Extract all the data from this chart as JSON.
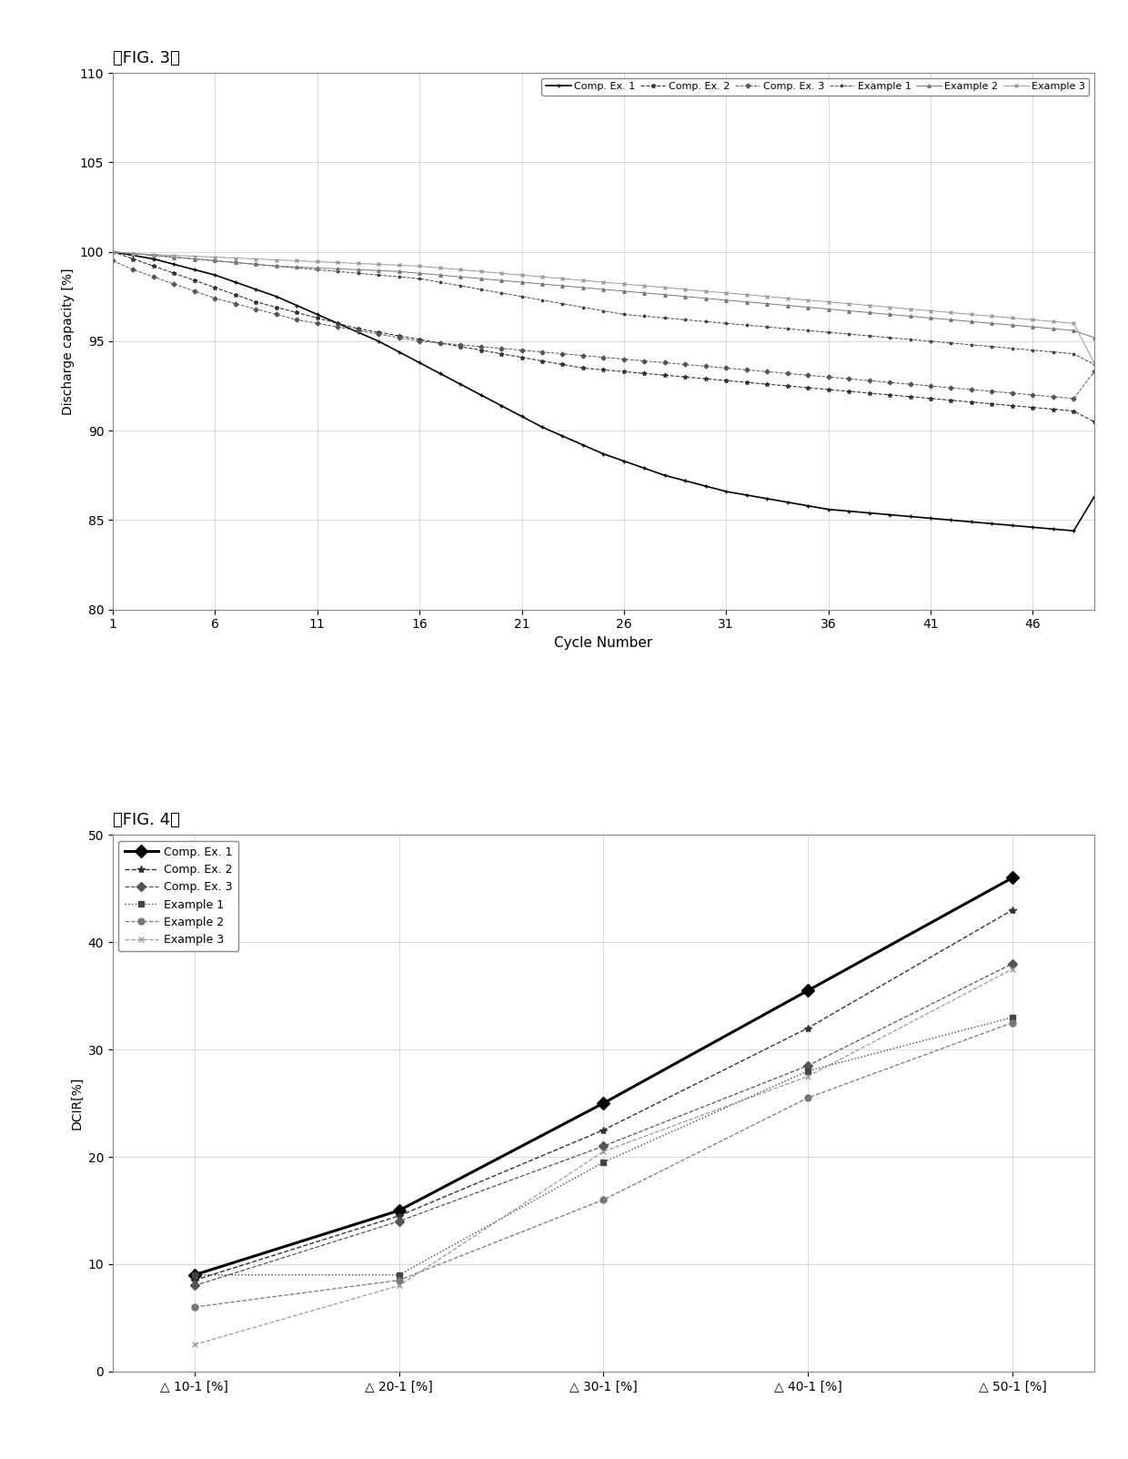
{
  "fig3_title": "』FIG. 3』",
  "fig4_title": "』FIG. 4』",
  "fig3_xlabel": "Cycle Number",
  "fig3_ylabel": "Discharge capacity [%]",
  "fig4_ylabel": "DCIR[%]",
  "fig3_xlim": [
    1,
    49
  ],
  "fig3_ylim": [
    80,
    110
  ],
  "fig3_yticks": [
    80,
    85,
    90,
    95,
    100,
    105,
    110
  ],
  "fig3_xticks": [
    1,
    6,
    11,
    16,
    21,
    26,
    31,
    36,
    41,
    46
  ],
  "fig4_ylim": [
    0,
    50
  ],
  "fig4_yticks": [
    0,
    10,
    20,
    30,
    40,
    50
  ],
  "fig4_xticklabels": [
    "△ 10-1 [%]",
    "△ 20-1 [%]",
    "△ 30-1 [%]",
    "△ 40-1 [%]",
    "△ 50-1 [%]"
  ],
  "fig3_legend": [
    "Comp. Ex. 1",
    "Comp. Ex. 2",
    "Comp. Ex. 3",
    "Example 1",
    "Example 2",
    "Example 3"
  ],
  "fig4_legend": [
    "Comp. Ex. 1",
    "Comp. Ex. 2",
    "Comp. Ex. 3",
    "Example 1",
    "Example 2",
    "Example 3"
  ],
  "fig3_data": {
    "comp_ex1": [
      100.0,
      99.8,
      99.6,
      99.3,
      99.0,
      98.7,
      98.3,
      97.9,
      97.5,
      97.0,
      96.5,
      96.0,
      95.5,
      95.0,
      94.4,
      93.8,
      93.2,
      92.6,
      92.0,
      91.4,
      90.8,
      90.2,
      89.7,
      89.2,
      88.7,
      88.3,
      87.9,
      87.5,
      87.2,
      86.9,
      86.6,
      86.4,
      86.2,
      86.0,
      85.8,
      85.6,
      85.5,
      85.4,
      85.3,
      85.2,
      85.1,
      85.0,
      84.9,
      84.8,
      84.7,
      84.6,
      84.5,
      84.4,
      86.3
    ],
    "comp_ex2": [
      100.0,
      99.6,
      99.2,
      98.8,
      98.4,
      98.0,
      97.6,
      97.2,
      96.9,
      96.6,
      96.3,
      96.0,
      95.7,
      95.5,
      95.3,
      95.1,
      94.9,
      94.7,
      94.5,
      94.3,
      94.1,
      93.9,
      93.7,
      93.5,
      93.4,
      93.3,
      93.2,
      93.1,
      93.0,
      92.9,
      92.8,
      92.7,
      92.6,
      92.5,
      92.4,
      92.3,
      92.2,
      92.1,
      92.0,
      91.9,
      91.8,
      91.7,
      91.6,
      91.5,
      91.4,
      91.3,
      91.2,
      91.1,
      90.5
    ],
    "comp_ex3": [
      99.5,
      99.0,
      98.6,
      98.2,
      97.8,
      97.4,
      97.1,
      96.8,
      96.5,
      96.2,
      96.0,
      95.8,
      95.6,
      95.4,
      95.2,
      95.0,
      94.9,
      94.8,
      94.7,
      94.6,
      94.5,
      94.4,
      94.3,
      94.2,
      94.1,
      94.0,
      93.9,
      93.8,
      93.7,
      93.6,
      93.5,
      93.4,
      93.3,
      93.2,
      93.1,
      93.0,
      92.9,
      92.8,
      92.7,
      92.6,
      92.5,
      92.4,
      92.3,
      92.2,
      92.1,
      92.0,
      91.9,
      91.8,
      93.3
    ],
    "example1": [
      100.0,
      99.9,
      99.8,
      99.7,
      99.6,
      99.5,
      99.4,
      99.3,
      99.2,
      99.1,
      99.0,
      98.9,
      98.8,
      98.7,
      98.6,
      98.5,
      98.3,
      98.1,
      97.9,
      97.7,
      97.5,
      97.3,
      97.1,
      96.9,
      96.7,
      96.5,
      96.4,
      96.3,
      96.2,
      96.1,
      96.0,
      95.9,
      95.8,
      95.7,
      95.6,
      95.5,
      95.4,
      95.3,
      95.2,
      95.1,
      95.0,
      94.9,
      94.8,
      94.7,
      94.6,
      94.5,
      94.4,
      94.3,
      93.7
    ],
    "example2": [
      100.0,
      99.9,
      99.8,
      99.7,
      99.6,
      99.5,
      99.4,
      99.3,
      99.2,
      99.15,
      99.1,
      99.05,
      99.0,
      98.95,
      98.9,
      98.8,
      98.7,
      98.6,
      98.5,
      98.4,
      98.3,
      98.2,
      98.1,
      98.0,
      97.9,
      97.8,
      97.7,
      97.6,
      97.5,
      97.4,
      97.3,
      97.2,
      97.1,
      97.0,
      96.9,
      96.8,
      96.7,
      96.6,
      96.5,
      96.4,
      96.3,
      96.2,
      96.1,
      96.0,
      95.9,
      95.8,
      95.7,
      95.6,
      95.2
    ],
    "example3": [
      100.0,
      99.9,
      99.85,
      99.8,
      99.75,
      99.7,
      99.65,
      99.6,
      99.55,
      99.5,
      99.45,
      99.4,
      99.35,
      99.3,
      99.25,
      99.2,
      99.1,
      99.0,
      98.9,
      98.8,
      98.7,
      98.6,
      98.5,
      98.4,
      98.3,
      98.2,
      98.1,
      98.0,
      97.9,
      97.8,
      97.7,
      97.6,
      97.5,
      97.4,
      97.3,
      97.2,
      97.1,
      97.0,
      96.9,
      96.8,
      96.7,
      96.6,
      96.5,
      96.4,
      96.3,
      96.2,
      96.1,
      96.0,
      93.8
    ]
  },
  "fig4_data": {
    "x": [
      0,
      1,
      2,
      3,
      4
    ],
    "comp_ex1": [
      9.0,
      15.0,
      25.0,
      35.5,
      46.0
    ],
    "comp_ex2": [
      8.5,
      14.5,
      22.5,
      32.0,
      43.0
    ],
    "comp_ex3": [
      8.0,
      14.0,
      21.0,
      28.5,
      38.0
    ],
    "example1": [
      9.0,
      9.0,
      19.5,
      28.0,
      33.0
    ],
    "example2": [
      6.0,
      8.5,
      16.0,
      25.5,
      32.5
    ],
    "example3": [
      2.5,
      8.0,
      20.5,
      27.5,
      37.5
    ]
  },
  "background_color": "#ffffff",
  "grid_color": "#cccccc"
}
